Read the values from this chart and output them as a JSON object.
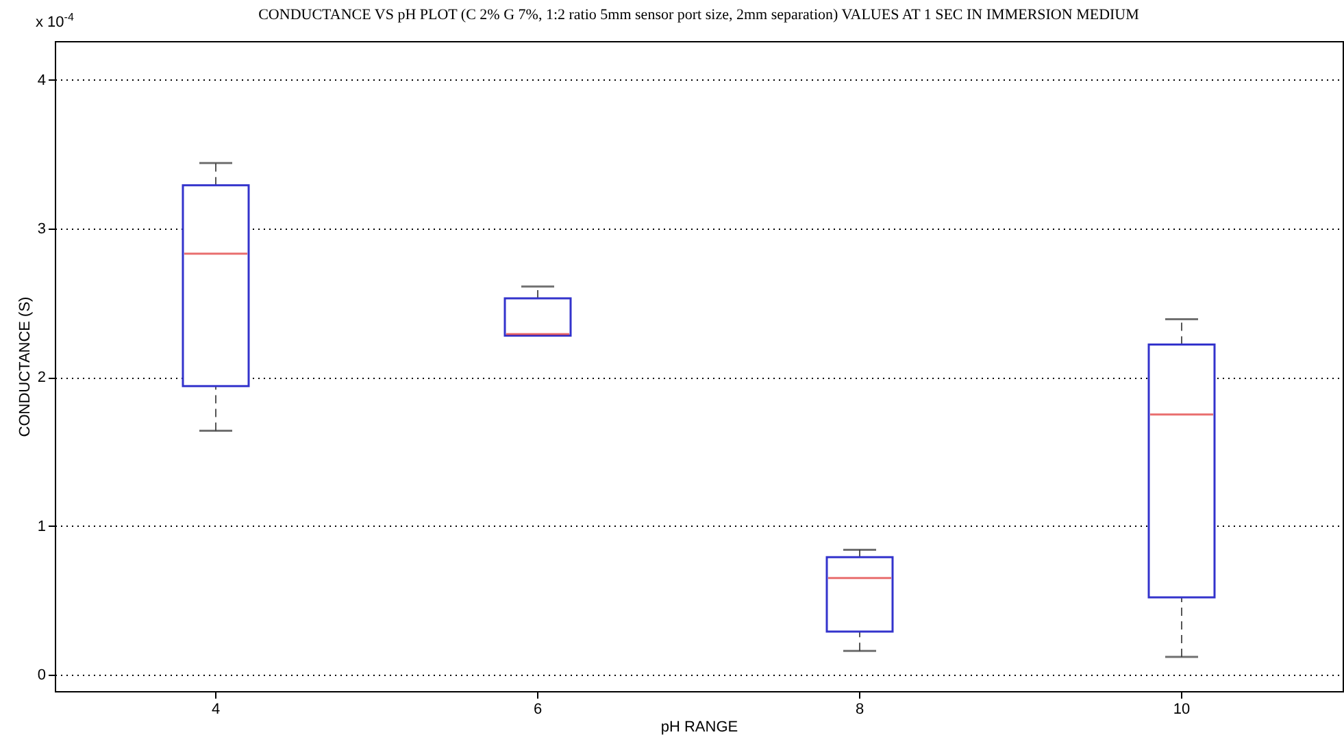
{
  "chart_data": {
    "type": "box",
    "title": "CONDUCTANCE VS pH PLOT (C 2% G 7%, 1:2 ratio 5mm sensor port size, 2mm separation) VALUES AT 1 SEC IN IMMERSION MEDIUM",
    "xlabel": "pH RANGE",
    "ylabel": "CONDUCTANCE (S)",
    "annotations": [
      "x 10$^{-4}$"
    ],
    "categories": [
      "4",
      "6",
      "8",
      "10"
    ],
    "series": [
      {
        "color": "#3333cc",
        "boxes": [
          {
            "low": 1.64,
            "q1": 1.94,
            "median": 2.83,
            "q3": 3.29,
            "high": 3.44
          },
          {
            "low": 2.28,
            "q1": 2.28,
            "median": 2.29,
            "q3": 2.53,
            "high": 2.61
          },
          {
            "low": 0.16,
            "q1": 0.29,
            "median": 0.65,
            "q3": 0.79,
            "high": 0.84
          },
          {
            "low": 0.12,
            "q1": 0.52,
            "median": 1.75,
            "q3": 2.22,
            "high": 2.39
          }
        ]
      }
    ],
    "ylim": [
      -0.11,
      4.26
    ],
    "yticks": [
      0,
      1,
      2,
      3,
      4
    ],
    "grid": "y"
  }
}
